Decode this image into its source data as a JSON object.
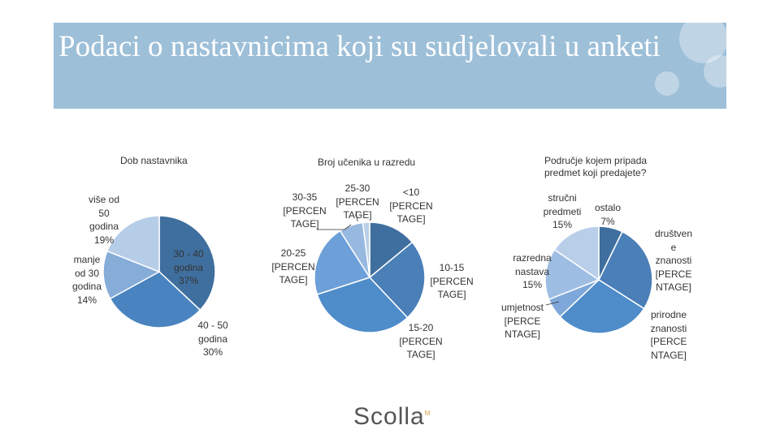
{
  "slide": {
    "title": "Podaci o nastavnicima koji su sudjelovali u anketi",
    "logo": "Scolla",
    "logo_mark": "M"
  },
  "colors": {
    "banner": "#9dbfd8",
    "palette": [
      "#3f6f9e",
      "#4a84c0",
      "#6e9fd6",
      "#97b9df",
      "#bcd0ea",
      "#a8c4e4",
      "#2e5f8e"
    ]
  },
  "chart_data": [
    {
      "type": "pie",
      "title": "Dob nastavnika",
      "slices": [
        {
          "label": "30 - 40 godina",
          "value": 37,
          "display": "30 - 40\ngodina\n37%"
        },
        {
          "label": "40 - 50 godina",
          "value": 30,
          "display": "40 - 50\ngodina\n30%"
        },
        {
          "label": "manje od 30 godina",
          "value": 14,
          "display": "manje\nod 30\ngodina\n14%"
        },
        {
          "label": "više od 50 godina",
          "value": 19,
          "display": "više od\n50\ngodina\n19%"
        }
      ]
    },
    {
      "type": "pie",
      "title": "Broj učenika u razredu",
      "slices": [
        {
          "label": "10-15",
          "value": 14,
          "display": "10-15\n[PERCEN\nTAGE]"
        },
        {
          "label": "15-20",
          "value": 24,
          "display": "15-20\n[PERCEN\nTAGE]"
        },
        {
          "label": "20-25",
          "value": 32,
          "display": "20-25\n[PERCEN\nTAGE]"
        },
        {
          "label": "25-30",
          "value": 21,
          "display": "25-30\n[PERCEN\nTAGE]"
        },
        {
          "label": "30-35",
          "value": 7,
          "display": "30-35\n[PERCEN\nTAGE]"
        },
        {
          "label": "<10",
          "value": 2,
          "display": "<10\n[PERCEN\nTAGE]"
        }
      ]
    },
    {
      "type": "pie",
      "title": "Područje kojem pripada predmet koji predajete?",
      "slices": [
        {
          "label": "ostalo",
          "value": 7,
          "display": "ostalo\n7%"
        },
        {
          "label": "društvene znanosti",
          "value": 26,
          "display": "društven\ne\nznanosti\n[PERCE\nNTAGE]"
        },
        {
          "label": "prirodne znanosti",
          "value": 28,
          "display": "prirodne\nznanosti\n[PERCE\nNTAGE]"
        },
        {
          "label": "umjetnost",
          "value": 6,
          "display": "umjetnost\n[PERCE\nNTAGE]"
        },
        {
          "label": "razredna nastava",
          "value": 15,
          "display": "razredna\nnastava\n15%"
        },
        {
          "label": "stručni predmeti",
          "value": 15,
          "display": "stručni\npredmeti\n15%"
        }
      ]
    }
  ]
}
